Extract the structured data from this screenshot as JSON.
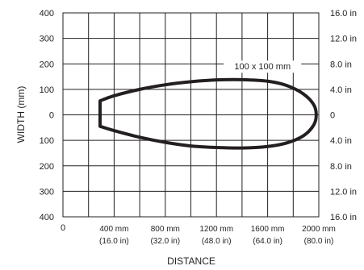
{
  "chart_data": {
    "type": "line",
    "title": "",
    "xlabel": "DISTANCE",
    "ylabel": "WIDTH (mm)",
    "xlim": [
      0,
      2000
    ],
    "ylim": [
      -400,
      400
    ],
    "grid": true,
    "x_ticks": [
      {
        "value": 400,
        "mm": "400 mm",
        "in": "(16.0 in)"
      },
      {
        "value": 800,
        "mm": "800 mm",
        "in": "(32.0 in)"
      },
      {
        "value": 1200,
        "mm": "1200 mm",
        "in": "(48.0 in)"
      },
      {
        "value": 1600,
        "mm": "1600 mm",
        "in": "(64.0 in)"
      },
      {
        "value": 2000,
        "mm": "2000 mm",
        "in": "(80.0 in)"
      }
    ],
    "x_origin_label": "0",
    "y_ticks_left": [
      {
        "value": 400,
        "label": "400"
      },
      {
        "value": 300,
        "label": "300"
      },
      {
        "value": 200,
        "label": "200"
      },
      {
        "value": 100,
        "label": "100"
      },
      {
        "value": 0,
        "label": "0"
      },
      {
        "value": -100,
        "label": "100"
      },
      {
        "value": -200,
        "label": "200"
      },
      {
        "value": -300,
        "label": "300"
      },
      {
        "value": -400,
        "label": "400"
      }
    ],
    "y_ticks_right": [
      {
        "value": 400,
        "label": "16.0 in"
      },
      {
        "value": 300,
        "label": "12.0 in"
      },
      {
        "value": 200,
        "label": "8.0 in"
      },
      {
        "value": 100,
        "label": "4.0 in"
      },
      {
        "value": 0,
        "label": "0"
      },
      {
        "value": -100,
        "label": "4.0 in"
      },
      {
        "value": -200,
        "label": "8.0 in"
      },
      {
        "value": -300,
        "label": "12.0 in"
      },
      {
        "value": -400,
        "label": "16.0 in"
      }
    ],
    "series": [
      {
        "name": "100 x 100 mm",
        "color": "#231f20",
        "points": [
          {
            "x": 290,
            "y": 55
          },
          {
            "x": 400,
            "y": 75
          },
          {
            "x": 600,
            "y": 100
          },
          {
            "x": 800,
            "y": 118
          },
          {
            "x": 1000,
            "y": 130
          },
          {
            "x": 1200,
            "y": 137
          },
          {
            "x": 1400,
            "y": 138
          },
          {
            "x": 1600,
            "y": 132
          },
          {
            "x": 1750,
            "y": 115
          },
          {
            "x": 1880,
            "y": 82
          },
          {
            "x": 1960,
            "y": 40
          },
          {
            "x": 1980,
            "y": 0
          },
          {
            "x": 1960,
            "y": -40
          },
          {
            "x": 1880,
            "y": -82
          },
          {
            "x": 1750,
            "y": -110
          },
          {
            "x": 1600,
            "y": -124
          },
          {
            "x": 1400,
            "y": -130
          },
          {
            "x": 1200,
            "y": -128
          },
          {
            "x": 1000,
            "y": -122
          },
          {
            "x": 800,
            "y": -108
          },
          {
            "x": 600,
            "y": -88
          },
          {
            "x": 400,
            "y": -62
          },
          {
            "x": 290,
            "y": -45
          }
        ]
      }
    ]
  }
}
